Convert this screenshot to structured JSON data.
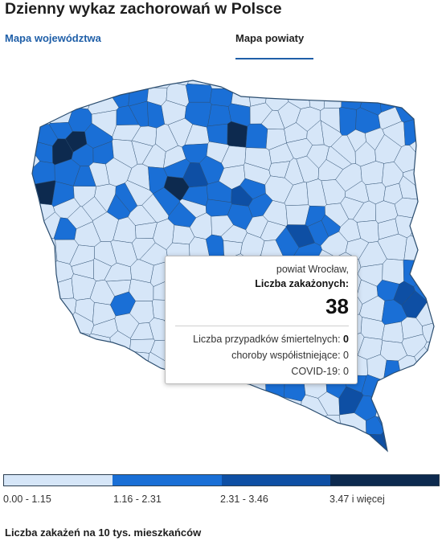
{
  "page": {
    "title": "Dzienny wykaz zachorowań w Polsce",
    "footer": "Liczba zakażeń na 10 tys. mieszkańców"
  },
  "tabs": [
    {
      "label": "Mapa województwa",
      "active": false
    },
    {
      "label": "Mapa powiaty",
      "active": true
    }
  ],
  "colors": {
    "class1": "#d6e6f8",
    "class2": "#1a6fd6",
    "class3": "#0e4fa4",
    "class4": "#0d2a4f",
    "boundary": "#2b4d6f",
    "active_tab": "#1f5fa8"
  },
  "tooltip": {
    "name": "powiat Wrocław,",
    "label": "Liczba zakażonych:",
    "value": "38",
    "deaths_label": "Liczba przypadków śmiertelnych:",
    "deaths_value": "0",
    "comorb_label": "choroby współistniejące:",
    "comorb_value": "0",
    "covid_label": "COVID-19:",
    "covid_value": "0"
  },
  "legend": [
    {
      "label": "0.00 - 1.15",
      "color": "#d6e6f8"
    },
    {
      "label": "1.16 - 2.31",
      "color": "#1a6fd6"
    },
    {
      "label": "2.31 - 3.46",
      "color": "#0e4fa4"
    },
    {
      "label": "3.47 i więcej",
      "color": "#0d2a4f"
    }
  ]
}
